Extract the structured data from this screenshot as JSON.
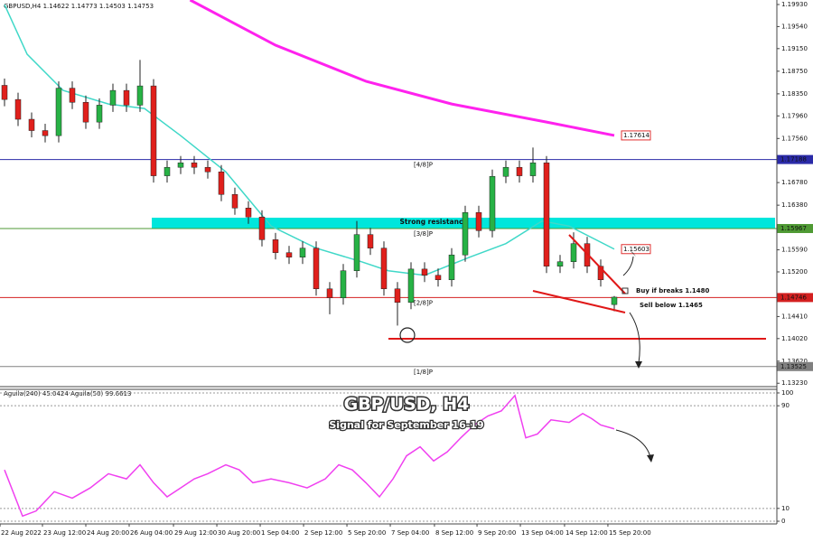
{
  "chart_data": [
    {
      "type": "candlestick",
      "title": "GBPUSD,H4  1.14622 1.14773 1.14503 1.14753",
      "x": [
        0,
        1,
        2,
        3,
        4,
        5,
        6,
        7,
        8,
        9,
        10,
        11,
        12,
        13,
        14,
        15,
        16,
        17,
        18,
        19,
        20,
        21,
        22,
        23,
        24,
        25,
        26,
        27,
        28,
        29,
        30,
        31,
        32,
        33,
        34,
        35,
        36,
        37,
        38,
        39,
        40,
        41,
        42,
        43,
        44,
        45
      ],
      "open": [
        1.185,
        1.1825,
        1.179,
        1.177,
        1.1761,
        1.1845,
        1.182,
        1.1785,
        1.1815,
        1.1841,
        1.1815,
        1.1849,
        1.169,
        1.1705,
        1.1713,
        1.1705,
        1.1697,
        1.1657,
        1.1633,
        1.1617,
        1.1577,
        1.1554,
        1.1546,
        1.1562,
        1.149,
        1.1474,
        1.1522,
        1.1586,
        1.1562,
        1.149,
        1.1466,
        1.1525,
        1.1514,
        1.1506,
        1.155,
        1.1625,
        1.1593,
        1.1689,
        1.1705,
        1.169,
        1.1713,
        1.153,
        1.1538,
        1.157,
        1.153,
        1.14622
      ],
      "high": [
        1.1862,
        1.1837,
        1.1802,
        1.1782,
        1.1857,
        1.1857,
        1.1832,
        1.1827,
        1.1853,
        1.1853,
        1.1895,
        1.1861,
        1.1717,
        1.1725,
        1.1725,
        1.1717,
        1.1709,
        1.1669,
        1.1645,
        1.1629,
        1.1589,
        1.1566,
        1.1574,
        1.1574,
        1.1502,
        1.1534,
        1.161,
        1.1598,
        1.1574,
        1.1502,
        1.1537,
        1.1537,
        1.1526,
        1.1562,
        1.1637,
        1.1637,
        1.1701,
        1.1717,
        1.1717,
        1.174,
        1.1725,
        1.155,
        1.159,
        1.1582,
        1.1542,
        1.14773
      ],
      "low": [
        1.1813,
        1.1778,
        1.1758,
        1.1749,
        1.1749,
        1.1808,
        1.1773,
        1.1773,
        1.1803,
        1.1803,
        1.1803,
        1.1678,
        1.1678,
        1.1693,
        1.1693,
        1.1685,
        1.1645,
        1.1621,
        1.1605,
        1.1565,
        1.1542,
        1.1534,
        1.1534,
        1.1478,
        1.1445,
        1.1462,
        1.151,
        1.155,
        1.1478,
        1.1425,
        1.1454,
        1.1502,
        1.1494,
        1.1494,
        1.1538,
        1.1581,
        1.1581,
        1.1677,
        1.1678,
        1.1678,
        1.1518,
        1.1518,
        1.1526,
        1.1518,
        1.1494,
        1.14503
      ],
      "close": [
        1.1825,
        1.179,
        1.177,
        1.1761,
        1.1845,
        1.182,
        1.1785,
        1.1815,
        1.1841,
        1.1815,
        1.1849,
        1.169,
        1.1705,
        1.1713,
        1.1705,
        1.1697,
        1.1657,
        1.1633,
        1.1617,
        1.1577,
        1.1554,
        1.1546,
        1.1562,
        1.149,
        1.1474,
        1.1522,
        1.1586,
        1.1562,
        1.149,
        1.1466,
        1.1525,
        1.1514,
        1.1506,
        1.155,
        1.1625,
        1.1593,
        1.1689,
        1.1705,
        1.169,
        1.1713,
        1.153,
        1.1538,
        1.157,
        1.153,
        1.1506,
        1.14753
      ],
      "up_color": "#27b245",
      "down_color": "#e0201c",
      "xlim": [
        -0.333,
        57
      ],
      "ylim": [
        1.1317,
        1.2001
      ],
      "yticks": [
        {
          "value": 1.1993,
          "label": "1.19930"
        },
        {
          "value": 1.1954,
          "label": "1.19540"
        },
        {
          "value": 1.1915,
          "label": "1.19150"
        },
        {
          "value": 1.1875,
          "label": "1.18750"
        },
        {
          "value": 1.1835,
          "label": "1.18350"
        },
        {
          "value": 1.1796,
          "label": "1.17960"
        },
        {
          "value": 1.1756,
          "label": "1.17560"
        },
        {
          "value": 1.1678,
          "label": "1.16780"
        },
        {
          "value": 1.1638,
          "label": "1.16380"
        },
        {
          "value": 1.1559,
          "label": "1.15590"
        },
        {
          "value": 1.152,
          "label": "1.15200"
        },
        {
          "value": 1.1441,
          "label": "1.14410"
        },
        {
          "value": 1.1402,
          "label": "1.14020"
        },
        {
          "value": 1.1362,
          "label": "1.13620"
        },
        {
          "value": 1.1323,
          "label": "1.13230"
        }
      ],
      "xticks": [
        {
          "value": -0.33,
          "label": "22 Aug 2022"
        },
        {
          "value": 2.8,
          "label": "23 Aug 12:00"
        },
        {
          "value": 6,
          "label": "24 Aug 20:00"
        },
        {
          "value": 9.2,
          "label": "26 Aug 04:00"
        },
        {
          "value": 12.47,
          "label": "29 Aug 12:00"
        },
        {
          "value": 15.67,
          "label": "30 Aug 20:00"
        },
        {
          "value": 18.87,
          "label": "1 Sep 04:00"
        },
        {
          "value": 22.07,
          "label": "2 Sep 12:00"
        },
        {
          "value": 25.27,
          "label": "5 Sep 20:00"
        },
        {
          "value": 28.47,
          "label": "7 Sep 04:00"
        },
        {
          "value": 31.73,
          "label": "8 Sep 12:00"
        },
        {
          "value": 34.87,
          "label": "9 Sep 20:00"
        },
        {
          "value": 38.07,
          "label": "13 Sep 04:00"
        },
        {
          "value": 41.33,
          "label": "14 Sep 12:00"
        },
        {
          "value": 44.53,
          "label": "15 Sep 20:00"
        }
      ],
      "overlays": [
        {
          "color": "#ff22ee",
          "x": [
            13.7,
            20,
            26.7,
            33,
            40,
            45
          ],
          "values": [
            1.2001,
            1.1921,
            1.1857,
            1.1817,
            1.1785,
            1.17614
          ]
        },
        {
          "color": "#40d8c8",
          "x": [
            0,
            1.67,
            4.33,
            7.67,
            10.33,
            13,
            16.33,
            19.67,
            23,
            26.33,
            28.33,
            31,
            34.33,
            37,
            39.67,
            41.67,
            45
          ],
          "values": [
            1.1993,
            1.1905,
            1.1841,
            1.1817,
            1.1809,
            1.1761,
            1.1697,
            1.1601,
            1.1562,
            1.1538,
            1.1522,
            1.1514,
            1.1546,
            1.157,
            1.161,
            1.1601,
            1.15603
          ]
        }
      ],
      "levels": [
        {
          "name": "[4/8]P",
          "value": 1.17188,
          "color": "#2a2aa8"
        },
        {
          "name": "[3/8]P",
          "value": 1.15967,
          "color": "#4f9a34"
        },
        {
          "name": "[2/8]P",
          "value": 1.14746,
          "color": "#d42020"
        },
        {
          "name": "[1/8]P",
          "value": 1.13525,
          "color": "#808080"
        }
      ]
    },
    {
      "type": "line",
      "title": "Aguila(240) 45.0424  Aguila(50) 99.6613",
      "ylim": [
        -2.1,
        103.5
      ],
      "yticks": [
        100,
        90,
        10,
        0
      ],
      "grid": true,
      "series": [
        {
          "color": "#f040f0",
          "x": [
            0,
            1.33,
            2.33,
            3.67,
            5,
            6.33,
            7.67,
            9,
            10,
            11,
            12,
            13,
            14,
            15,
            16.33,
            17.33,
            18.33,
            19.67,
            21,
            22.33,
            23.67,
            24.67,
            25.67,
            26.67,
            27.67,
            28.67,
            29.67,
            30.67,
            31.67,
            32.67,
            33.67,
            34.67,
            35.67,
            36.67,
            37.67,
            38.47,
            39.33,
            40.33,
            41.67,
            42.67,
            43.33,
            44,
            45
          ],
          "values": [
            40,
            4,
            8,
            23,
            18,
            26,
            37,
            33,
            44,
            30,
            19,
            26,
            33,
            37,
            44,
            40,
            30,
            33,
            30,
            26,
            33,
            44,
            40,
            30,
            19,
            33,
            51,
            58,
            47,
            54,
            65,
            75,
            82,
            86,
            98,
            65,
            68,
            79,
            77,
            84,
            80,
            75,
            72
          ]
        }
      ]
    }
  ],
  "annotations": {
    "resistance": "Strong resistance",
    "buy": "Buy if breaks 1.1480",
    "sell": "Sell below 1.1465",
    "watermark_title": "GBP/USD, H4",
    "watermark_subtitle": "Signal for September 16-19"
  }
}
